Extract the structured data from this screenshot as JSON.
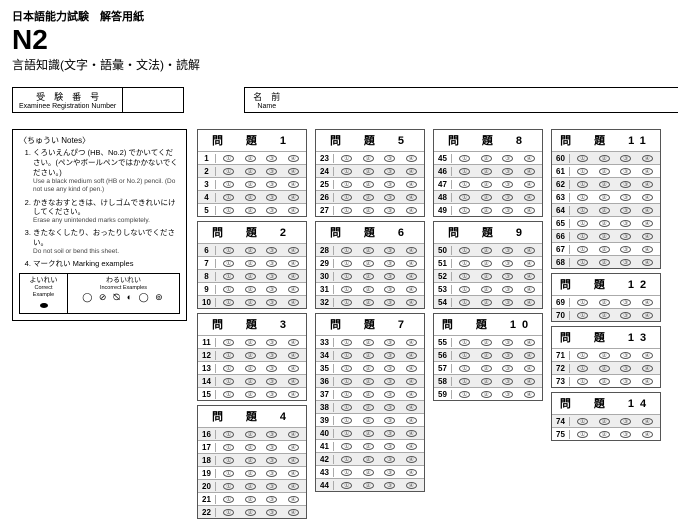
{
  "header": {
    "exam_title": "日本語能力試験　解答用紙",
    "level": "N2",
    "subtitle": "言語知識(文字・語彙・文法)・読解"
  },
  "fields": {
    "examinee_label_jp": "受　験　番　号",
    "examinee_label_en": "Examinee Registration Number",
    "name_label_jp": "名　前",
    "name_label_en": "Name"
  },
  "notes": {
    "title": "〈ちゅうい Notes〉",
    "items": [
      {
        "jp": "くろいえんぴつ (HB、No.2) でかいてください。(ペンやボールペンではかかないでください。)",
        "en": "Use a black medium soft (HB or No.2) pencil. (Do not use any kind of pen.)"
      },
      {
        "jp": "かきなおすときは、けしゴムできれいにけしてください。",
        "en": "Erase any unintended marks completely."
      },
      {
        "jp": "きたなくしたり、おったりしないでください。",
        "en": "Do not soil or bend this sheet."
      },
      {
        "jp": "マークれい Marking examples",
        "en": ""
      }
    ],
    "good_label_jp": "よいれい",
    "good_label_en": "Correct Example",
    "bad_label_jp": "わるいれい",
    "bad_label_en": "Incorrect Examples",
    "bad_samples": "◯ ⊘ ⦰ ◐ ◯ ⊚"
  },
  "section_prefix": "問　題",
  "bubbles": [
    "①",
    "②",
    "③",
    "④"
  ],
  "columns": [
    [
      {
        "num": 1,
        "start": 1,
        "end": 5
      },
      {
        "num": 2,
        "start": 6,
        "end": 10
      },
      {
        "num": 3,
        "start": 11,
        "end": 15
      },
      {
        "num": 4,
        "start": 16,
        "end": 22
      }
    ],
    [
      {
        "num": 5,
        "start": 23,
        "end": 27
      },
      {
        "num": 6,
        "start": 28,
        "end": 32
      },
      {
        "num": 7,
        "start": 33,
        "end": 44
      }
    ],
    [
      {
        "num": 8,
        "start": 45,
        "end": 49
      },
      {
        "num": 9,
        "start": 50,
        "end": 54
      },
      {
        "num": 10,
        "start": 55,
        "end": 59
      }
    ],
    [
      {
        "num": 11,
        "start": 60,
        "end": 68
      },
      {
        "num": 12,
        "start": 69,
        "end": 70
      },
      {
        "num": 13,
        "start": 71,
        "end": 73
      },
      {
        "num": 14,
        "start": 74,
        "end": 75
      }
    ]
  ],
  "colors": {
    "border": "#000000",
    "row_alt": "#eeeeee",
    "bubble_border": "#555555"
  }
}
